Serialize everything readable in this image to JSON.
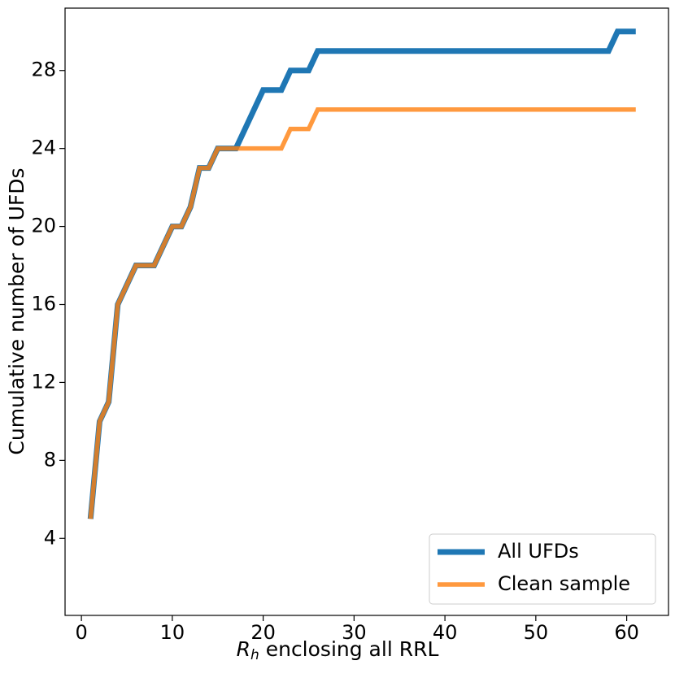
{
  "chart_data": {
    "type": "line",
    "xlabel": [
      "R",
      "h",
      " enclosing all RRL"
    ],
    "ylabel": "Cumulative number of UFDs",
    "x": [
      1,
      2,
      3,
      4,
      5,
      6,
      7,
      8,
      9,
      10,
      11,
      12,
      13,
      14,
      15,
      16,
      17,
      18,
      19,
      20,
      21,
      22,
      23,
      24,
      25,
      26,
      27,
      28,
      29,
      30,
      31,
      32,
      33,
      34,
      35,
      36,
      37,
      38,
      39,
      40,
      41,
      42,
      43,
      44,
      45,
      46,
      47,
      48,
      49,
      50,
      51,
      52,
      53,
      54,
      55,
      56,
      57,
      58,
      59,
      60,
      61
    ],
    "series": [
      {
        "name": "All UFDs",
        "color": "#1f77b4",
        "values": [
          5,
          10,
          11,
          16,
          17,
          18,
          18,
          18,
          19,
          20,
          20,
          21,
          23,
          23,
          24,
          24,
          24,
          25,
          26,
          27,
          27,
          27,
          28,
          28,
          28,
          29,
          29,
          29,
          29,
          29,
          29,
          29,
          29,
          29,
          29,
          29,
          29,
          29,
          29,
          29,
          29,
          29,
          29,
          29,
          29,
          29,
          29,
          29,
          29,
          29,
          29,
          29,
          29,
          29,
          29,
          29,
          29,
          29,
          30,
          30,
          30
        ]
      },
      {
        "name": "Clean sample",
        "color": "#ff7f0e",
        "values": [
          5,
          10,
          11,
          16,
          17,
          18,
          18,
          18,
          19,
          20,
          20,
          21,
          23,
          23,
          24,
          24,
          24,
          24,
          24,
          24,
          24,
          24,
          25,
          25,
          25,
          26,
          26,
          26,
          26,
          26,
          26,
          26,
          26,
          26,
          26,
          26,
          26,
          26,
          26,
          26,
          26,
          26,
          26,
          26,
          26,
          26,
          26,
          26,
          26,
          26,
          26,
          26,
          26,
          26,
          26,
          26,
          26,
          26,
          26,
          26,
          26
        ]
      }
    ],
    "xlim": [
      -1.8,
      64.6
    ],
    "ylim": [
      0.05,
      31.2
    ],
    "xticks": [
      0,
      10,
      20,
      30,
      40,
      50,
      60
    ],
    "yticks": [
      4,
      8,
      12,
      16,
      20,
      24,
      28
    ],
    "legend": "lower right"
  }
}
